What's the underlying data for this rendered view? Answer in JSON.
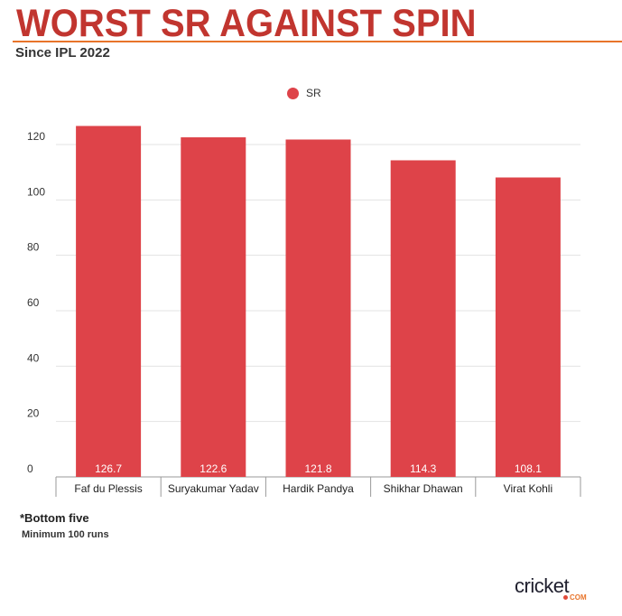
{
  "header": {
    "title": "WORST SR AGAINST SPIN",
    "subtitle": "Since IPL 2022"
  },
  "footer": {
    "note": "*Bottom five",
    "criteria": "Minimum 100 runs",
    "logo_text": "cricket",
    "logo_sub": "COM"
  },
  "colors": {
    "bar": "#de4349",
    "title": "#c1352f",
    "rule": "#e8742a"
  },
  "chart_data": {
    "type": "bar",
    "title": "WORST SR AGAINST SPIN",
    "categories": [
      "Faf du Plessis",
      "Suryakumar Yadav",
      "Hardik Pandya",
      "Shikhar Dhawan",
      "Virat Kohli"
    ],
    "series": [
      {
        "name": "SR",
        "values": [
          126.7,
          122.6,
          121.8,
          114.3,
          108.1
        ]
      }
    ],
    "value_labels": [
      "126.7",
      "122.6",
      "121.8",
      "114.3",
      "108.1"
    ],
    "xlabel": "",
    "ylabel": "",
    "ylim": [
      0,
      120
    ],
    "yticks": [
      0,
      20,
      40,
      60,
      80,
      100,
      120
    ],
    "grid": true,
    "legend": "top-center"
  }
}
